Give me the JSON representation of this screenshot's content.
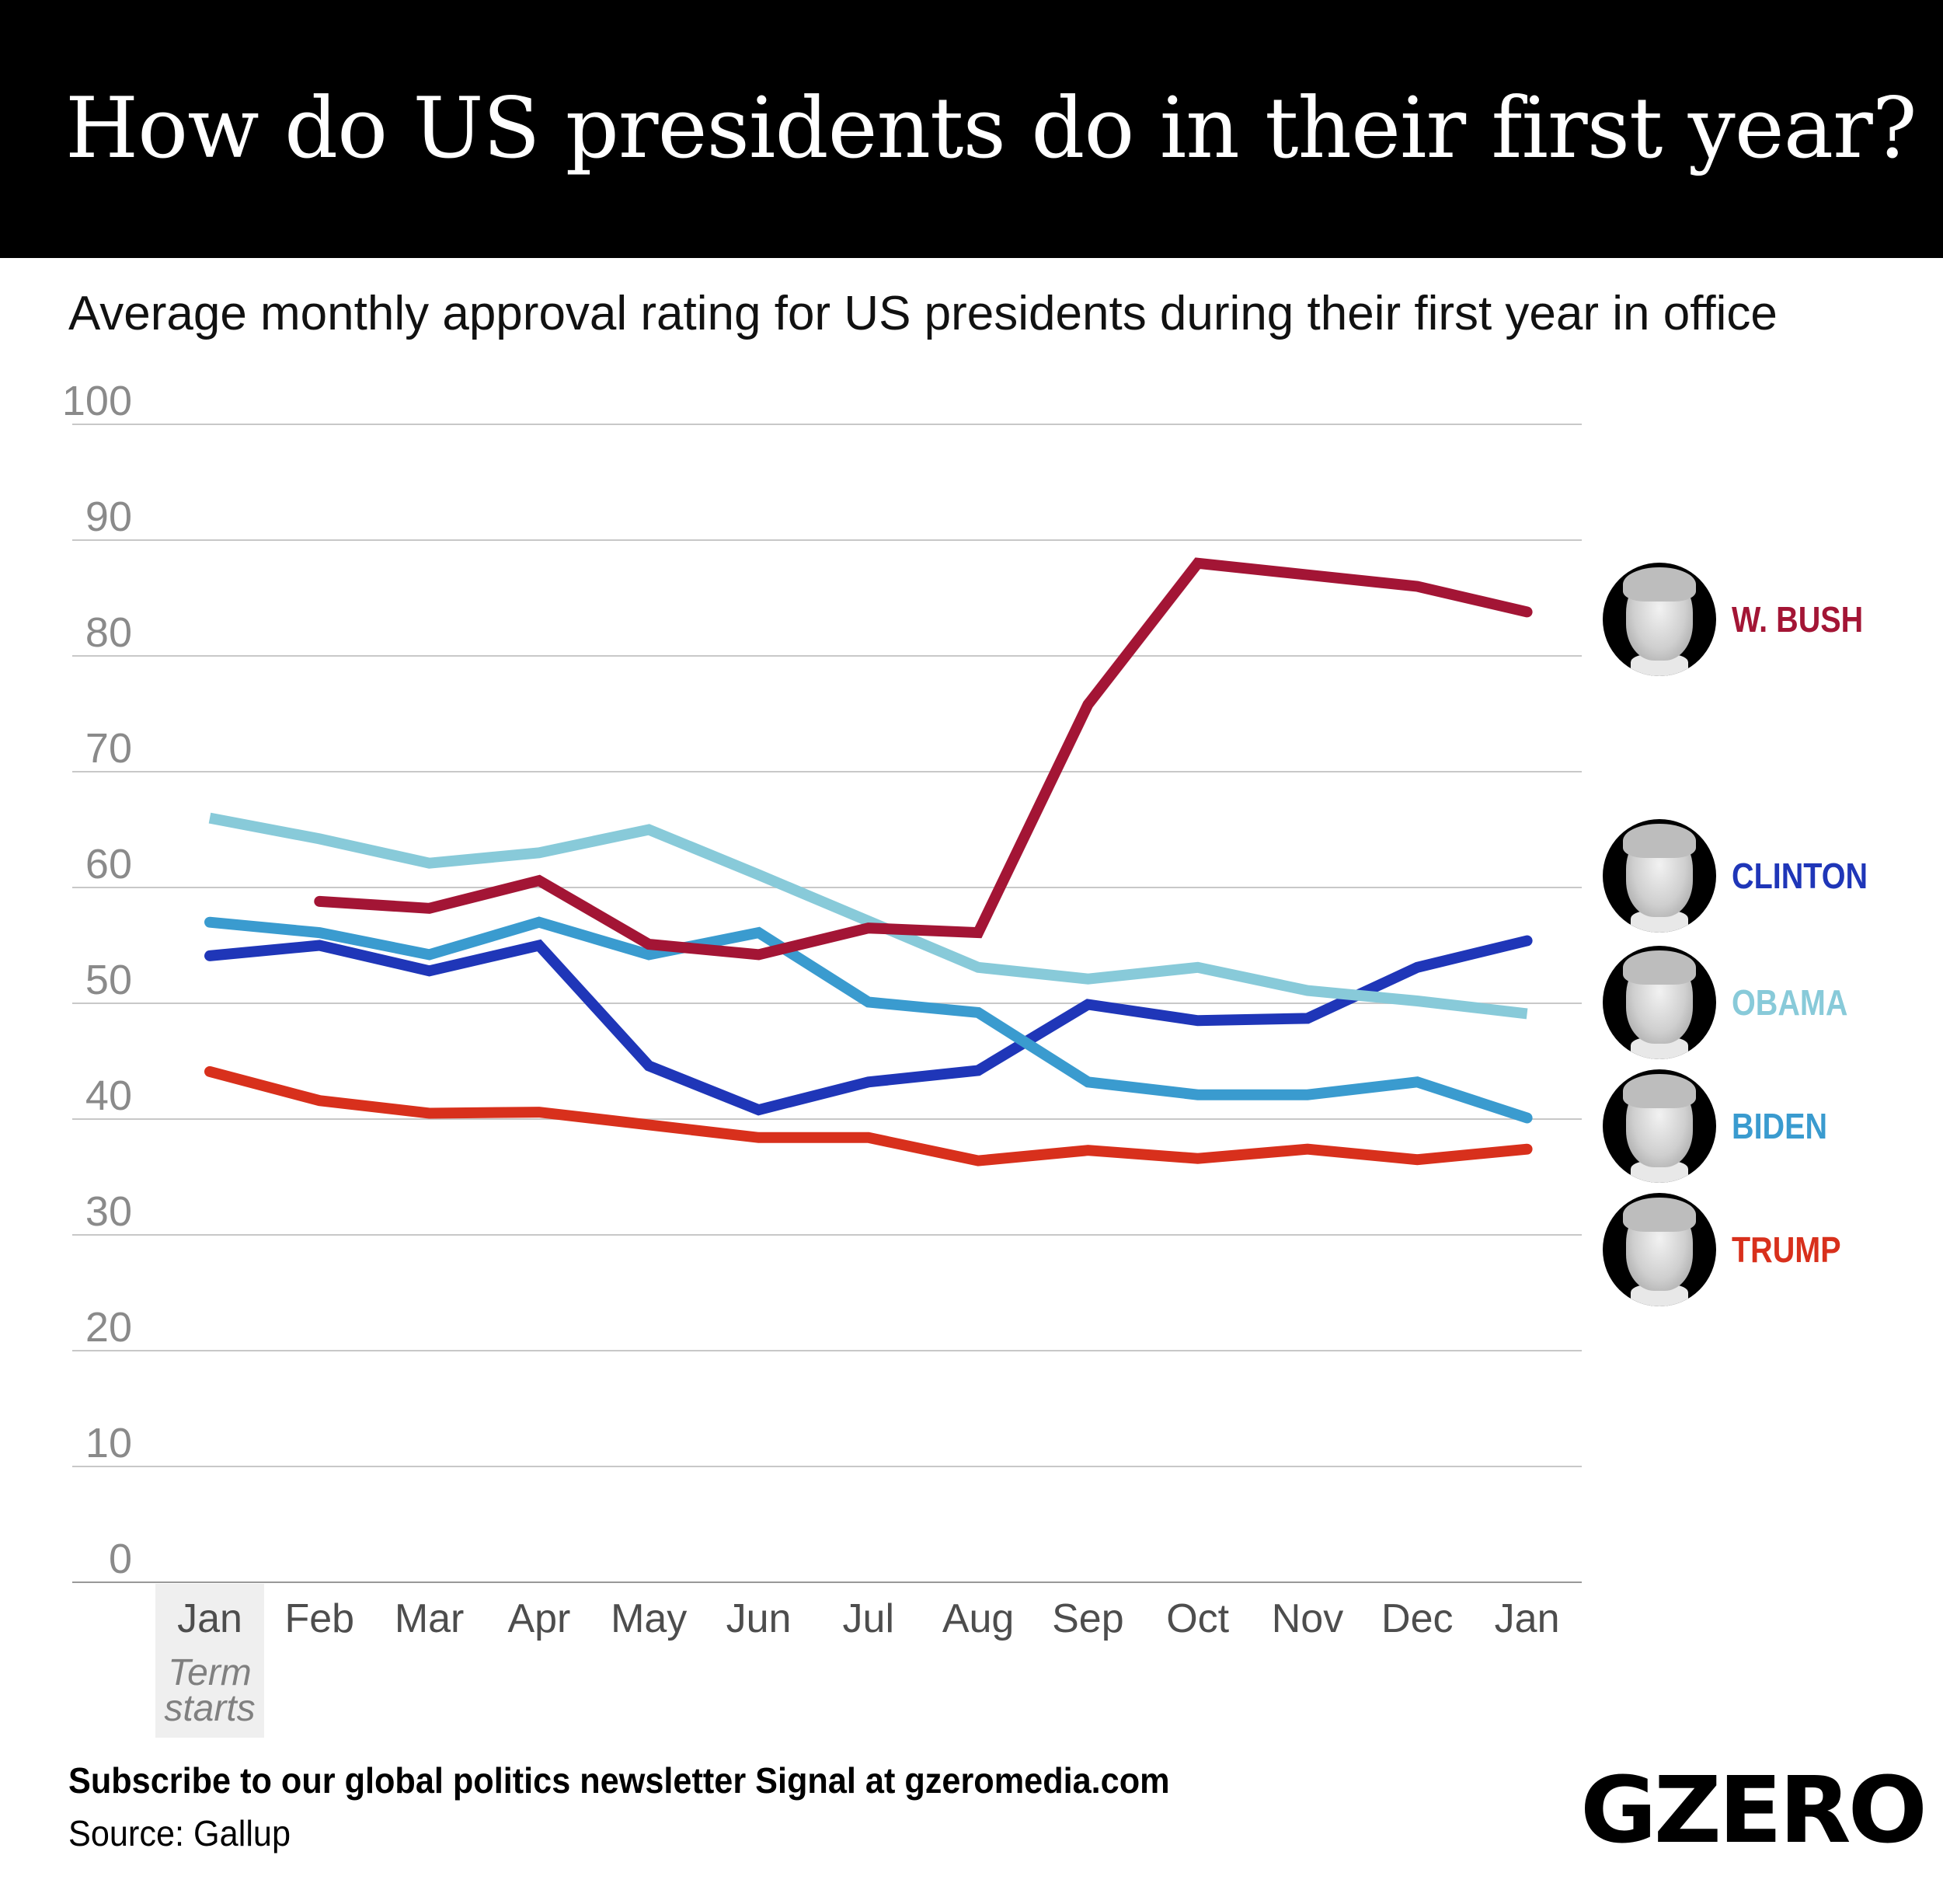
{
  "header": {
    "title": "How do US presidents do in their first year?",
    "subtitle": "Average monthly approval rating for US presidents during their first year in office"
  },
  "footer": {
    "cta": "Subscribe to our global politics newsletter Signal at gzeromedia.com",
    "source": "Source: Gallup",
    "logo": "GZERO"
  },
  "legend": [
    {
      "key": "bush",
      "label": "W. BUSH",
      "portrait": "george-w-bush-portrait",
      "color": "#A31535"
    },
    {
      "key": "clinton",
      "label": "CLINTON",
      "portrait": "bill-clinton-portrait",
      "color": "#1F36B8"
    },
    {
      "key": "obama",
      "label": "OBAMA",
      "portrait": "barack-obama-portrait",
      "color": "#88CAD9"
    },
    {
      "key": "biden",
      "label": "BIDEN",
      "portrait": "joe-biden-portrait",
      "color": "#3A9BCF"
    },
    {
      "key": "trump",
      "label": "TRUMP",
      "portrait": "donald-trump-portrait",
      "color": "#D8301C"
    }
  ],
  "chart_data": {
    "type": "line",
    "title": "How do US presidents do in their first year?",
    "subtitle": "Average monthly approval rating for US presidents during their first year in office",
    "xlabel": "",
    "ylabel": "",
    "categories": [
      "Jan",
      "Feb",
      "Mar",
      "Apr",
      "May",
      "Jun",
      "Jul",
      "Aug",
      "Sep",
      "Oct",
      "Nov",
      "Dec",
      "Jan"
    ],
    "x_annotation": {
      "category_index": 0,
      "text_lines": [
        "Term",
        "starts"
      ],
      "highlighted": true
    },
    "ylim": [
      0,
      100
    ],
    "yticks": [
      0,
      10,
      20,
      30,
      40,
      50,
      60,
      70,
      80,
      90,
      100
    ],
    "grid": true,
    "legend_position": "right",
    "series": [
      {
        "name": "W. BUSH",
        "color": "#A31535",
        "values": [
          null,
          58.8,
          58.2,
          60.6,
          55.1,
          54.2,
          56.5,
          56.1,
          75.8,
          88.0,
          87.0,
          86.0,
          83.8
        ]
      },
      {
        "name": "CLINTON",
        "color": "#1F36B8",
        "values": [
          54.1,
          55.0,
          52.8,
          55.0,
          44.6,
          40.8,
          43.2,
          44.2,
          49.9,
          48.5,
          48.7,
          53.1,
          55.4
        ]
      },
      {
        "name": "OBAMA",
        "color": "#88CAD9",
        "values": [
          66.0,
          64.2,
          62.1,
          63.0,
          65.0,
          61.1,
          57.1,
          53.1,
          52.1,
          53.1,
          51.1,
          50.2,
          49.1
        ]
      },
      {
        "name": "BIDEN",
        "color": "#3A9BCF",
        "values": [
          57.0,
          56.1,
          54.2,
          57.0,
          54.2,
          56.1,
          50.1,
          49.2,
          43.2,
          42.1,
          42.1,
          43.2,
          40.1
        ]
      },
      {
        "name": "TRUMP",
        "color": "#D8301C",
        "values": [
          44.1,
          41.6,
          40.5,
          40.6,
          39.5,
          38.4,
          38.4,
          36.4,
          37.3,
          36.6,
          37.4,
          36.5,
          37.4
        ]
      }
    ]
  }
}
